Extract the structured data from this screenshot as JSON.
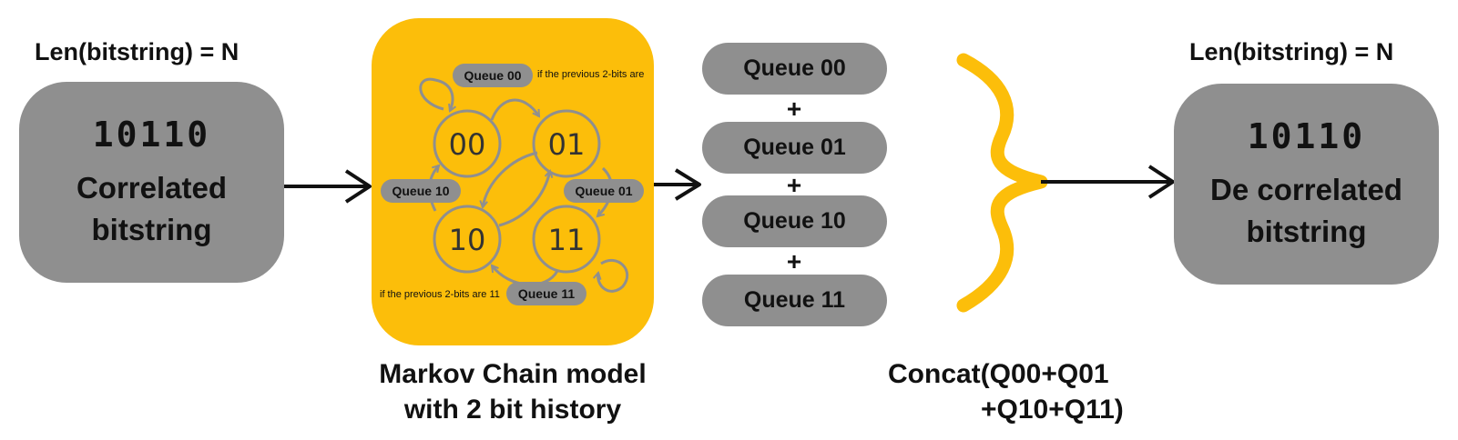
{
  "input": {
    "length_label": "Len(bitstring) = N",
    "bits": "10110",
    "title_line1": "Correlated",
    "title_line2": "bitstring"
  },
  "markov": {
    "states": [
      "00",
      "01",
      "10",
      "11"
    ],
    "queue_labels": {
      "q00": "Queue 00",
      "q01": "Queue 01",
      "q10": "Queue 10",
      "q11": "Queue 11"
    },
    "note_top": "if the previous 2-bits are",
    "note_bottom": "if the previous 2-bits are 11",
    "caption_line1": "Markov Chain model",
    "caption_line2": "with 2 bit history"
  },
  "queues": {
    "items": [
      "Queue 00",
      "Queue 01",
      "Queue 10",
      "Queue 11"
    ],
    "plus": "+"
  },
  "concat": {
    "line1": "Concat(Q00+Q01",
    "line2": "+Q10+Q11)"
  },
  "output": {
    "length_label": "Len(bitstring) = N",
    "bits": "10110",
    "title_line1": "De correlated",
    "title_line2": "bitstring"
  },
  "colors": {
    "yellow": "#fcbe0a",
    "gray": "#8f8f8f",
    "state_stroke": "#8f8f8f",
    "arrow": "#111111"
  }
}
